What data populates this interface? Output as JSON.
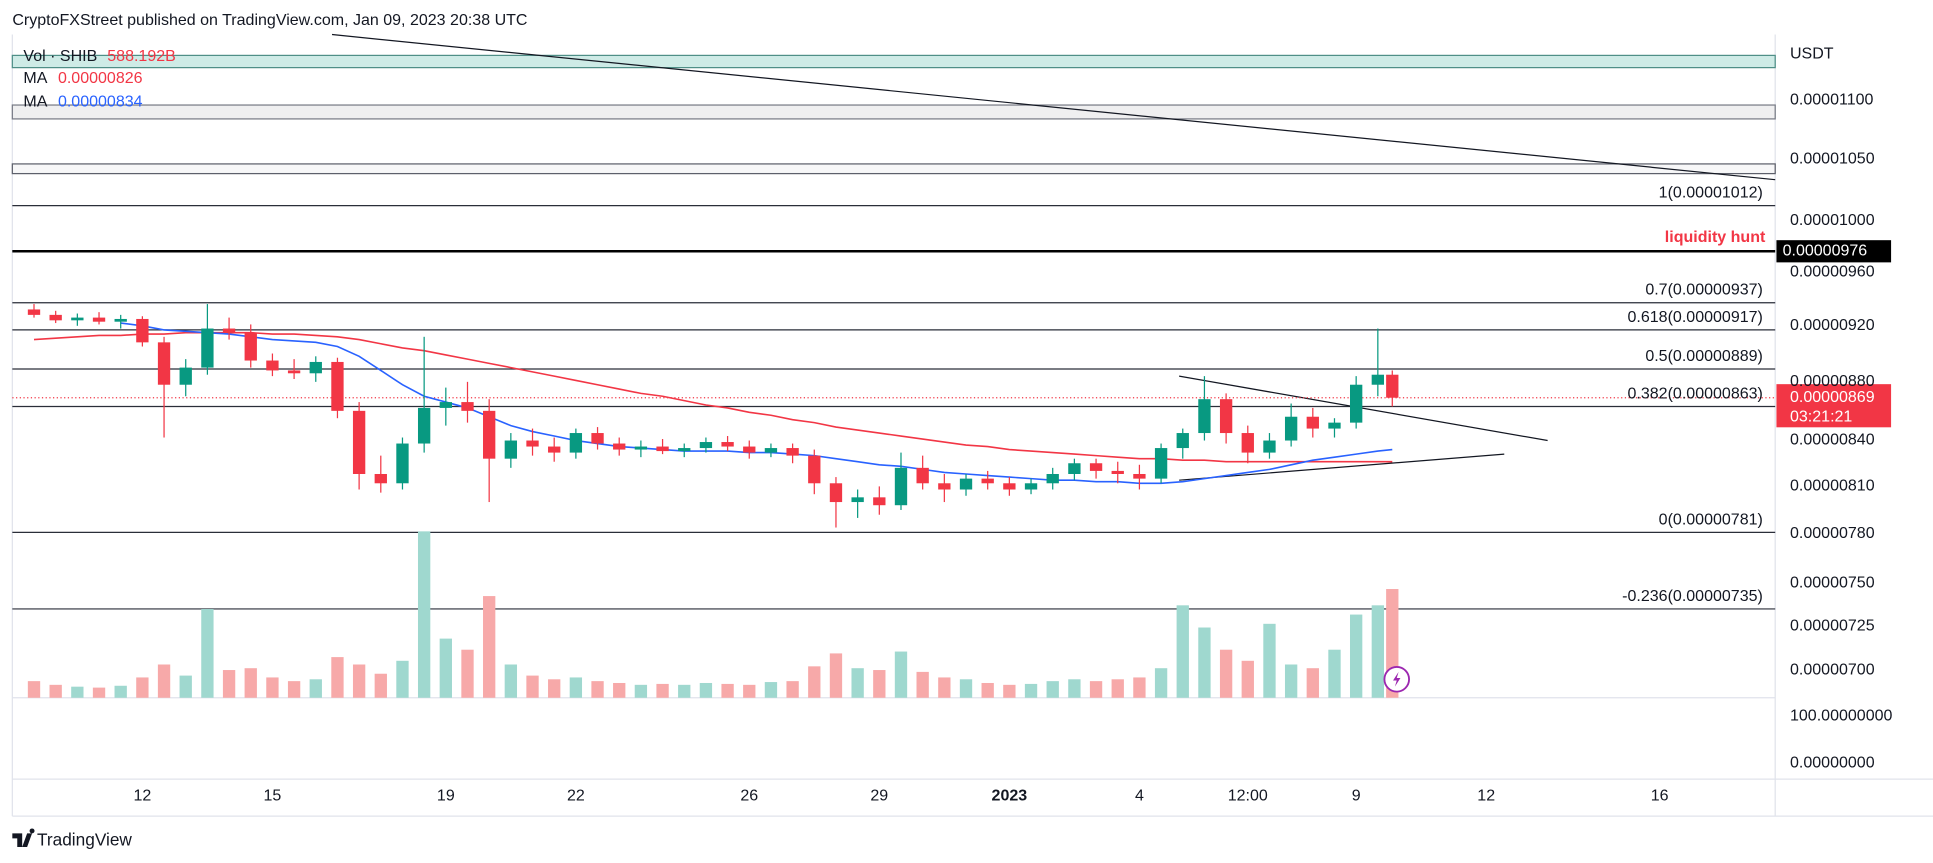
{
  "header": {
    "published": "CryptoFXStreet published on TradingView.com, Jan 09, 2023 20:38 UTC"
  },
  "footer": {
    "brand": "TradingView"
  },
  "chart_data": {
    "type": "candlestick",
    "log_scale": true,
    "unit": "USDT",
    "xlim": [
      "2022-12-09T00:00",
      "2023-01-18T16:00"
    ],
    "xticks": [
      {
        "value": "2022-12-12T00:00",
        "label": "12"
      },
      {
        "value": "2022-12-15T00:00",
        "label": "15"
      },
      {
        "value": "2022-12-19T00:00",
        "label": "19"
      },
      {
        "value": "2022-12-22T00:00",
        "label": "22"
      },
      {
        "value": "2022-12-26T00:00",
        "label": "26"
      },
      {
        "value": "2022-12-29T00:00",
        "label": "29"
      },
      {
        "value": "2023-01-01T00:00",
        "label": "2023",
        "bold": true
      },
      {
        "value": "2023-01-04T00:00",
        "label": "4"
      },
      {
        "value": "2023-01-06T12:00",
        "label": "12:00"
      },
      {
        "value": "2023-01-09T00:00",
        "label": "9"
      },
      {
        "value": "2023-01-12T00:00",
        "label": "12"
      },
      {
        "value": "2023-01-16T00:00",
        "label": "16"
      }
    ],
    "ylim": [
      6.85e-06,
      1.159e-05
    ],
    "yticks": [
      {
        "value": 1.1e-05,
        "label": "0.00001100"
      },
      {
        "value": 1.05e-05,
        "label": "0.00001050"
      },
      {
        "value": 1e-05,
        "label": "0.00001000"
      },
      {
        "value": 9.6e-06,
        "label": "0.00000960"
      },
      {
        "value": 9.2e-06,
        "label": "0.00000920"
      },
      {
        "value": 8.8e-06,
        "label": "0.00000880"
      },
      {
        "value": 8.4e-06,
        "label": "0.00000840"
      },
      {
        "value": 8.1e-06,
        "label": "0.00000810"
      },
      {
        "value": 7.8e-06,
        "label": "0.00000780"
      },
      {
        "value": 7.5e-06,
        "label": "0.00000750"
      },
      7.25e-06,
      {
        "value": 7e-06,
        "label": "0.00000700"
      }
    ],
    "up_color": "#089981",
    "down_color": "#f23645",
    "x": [
      "2022-12-09T12:00",
      "2022-12-10T00:00",
      "2022-12-10T12:00",
      "2022-12-11T00:00",
      "2022-12-11T12:00",
      "2022-12-12T00:00",
      "2022-12-12T12:00",
      "2022-12-13T00:00",
      "2022-12-13T12:00",
      "2022-12-14T00:00",
      "2022-12-14T12:00",
      "2022-12-15T00:00",
      "2022-12-15T12:00",
      "2022-12-16T00:00",
      "2022-12-16T12:00",
      "2022-12-17T00:00",
      "2022-12-17T12:00",
      "2022-12-18T00:00",
      "2022-12-18T12:00",
      "2022-12-19T00:00",
      "2022-12-19T12:00",
      "2022-12-20T00:00",
      "2022-12-20T12:00",
      "2022-12-21T00:00",
      "2022-12-21T12:00",
      "2022-12-22T00:00",
      "2022-12-22T12:00",
      "2022-12-23T00:00",
      "2022-12-23T12:00",
      "2022-12-24T00:00",
      "2022-12-24T12:00",
      "2022-12-25T00:00",
      "2022-12-25T12:00",
      "2022-12-26T00:00",
      "2022-12-26T12:00",
      "2022-12-27T00:00",
      "2022-12-27T12:00",
      "2022-12-28T00:00",
      "2022-12-28T12:00",
      "2022-12-29T00:00",
      "2022-12-29T12:00",
      "2022-12-30T00:00",
      "2022-12-30T12:00",
      "2022-12-31T00:00",
      "2022-12-31T12:00",
      "2023-01-01T00:00",
      "2023-01-01T12:00",
      "2023-01-02T00:00",
      "2023-01-02T12:00",
      "2023-01-03T00:00",
      "2023-01-03T12:00",
      "2023-01-04T00:00",
      "2023-01-04T12:00",
      "2023-01-05T00:00",
      "2023-01-05T12:00",
      "2023-01-06T00:00",
      "2023-01-06T12:00",
      "2023-01-07T00:00",
      "2023-01-07T12:00",
      "2023-01-08T00:00",
      "2023-01-08T12:00",
      "2023-01-09T00:00",
      "2023-01-09T12:00",
      "2023-01-09T20:00"
    ],
    "open": [
      9.32e-06,
      9.28e-06,
      9.24e-06,
      9.26e-06,
      9.23e-06,
      9.25e-06,
      9.08e-06,
      8.78e-06,
      8.9e-06,
      9.18e-06,
      9.15e-06,
      8.95e-06,
      8.88e-06,
      8.86e-06,
      8.94e-06,
      8.6e-06,
      8.18e-06,
      8.12e-06,
      8.38e-06,
      8.62e-06,
      8.66e-06,
      8.6e-06,
      8.28e-06,
      8.4e-06,
      8.36e-06,
      8.32e-06,
      8.45e-06,
      8.38e-06,
      8.34e-06,
      8.36e-06,
      8.33e-06,
      8.35e-06,
      8.39e-06,
      8.36e-06,
      8.32e-06,
      8.35e-06,
      8.3e-06,
      8.12e-06,
      8e-06,
      8.03e-06,
      7.98e-06,
      8.22e-06,
      8.12e-06,
      8.08e-06,
      8.15e-06,
      8.12e-06,
      8.08e-06,
      8.12e-06,
      8.18e-06,
      8.25e-06,
      8.2e-06,
      8.18e-06,
      8.15e-06,
      8.35e-06,
      8.45e-06,
      8.68e-06,
      8.45e-06,
      8.32e-06,
      8.4e-06,
      8.56e-06,
      8.48e-06,
      8.52e-06,
      8.78e-06,
      8.85e-06
    ],
    "high": [
      9.36e-06,
      9.31e-06,
      9.29e-06,
      9.3e-06,
      9.28e-06,
      9.27e-06,
      9.12e-06,
      8.96e-06,
      9.36e-06,
      9.26e-06,
      9.21e-06,
      9e-06,
      8.96e-06,
      8.98e-06,
      8.97e-06,
      8.66e-06,
      8.3e-06,
      8.42e-06,
      9.12e-06,
      8.76e-06,
      8.8e-06,
      8.68e-06,
      8.45e-06,
      8.48e-06,
      8.42e-06,
      8.48e-06,
      8.49e-06,
      8.42e-06,
      8.4e-06,
      8.41e-06,
      8.38e-06,
      8.42e-06,
      8.43e-06,
      8.4e-06,
      8.38e-06,
      8.38e-06,
      8.34e-06,
      8.16e-06,
      8.08e-06,
      8.1e-06,
      8.32e-06,
      8.3e-06,
      8.18e-06,
      8.18e-06,
      8.2e-06,
      8.16e-06,
      8.15e-06,
      8.22e-06,
      8.28e-06,
      8.28e-06,
      8.26e-06,
      8.24e-06,
      8.38e-06,
      8.48e-06,
      8.84e-06,
      8.72e-06,
      8.5e-06,
      8.45e-06,
      8.65e-06,
      8.62e-06,
      8.55e-06,
      8.84e-06,
      9.18e-06,
      8.88e-06
    ],
    "low": [
      9.26e-06,
      9.22e-06,
      9.2e-06,
      9.21e-06,
      9.18e-06,
      9.05e-06,
      8.42e-06,
      8.7e-06,
      8.85e-06,
      9.1e-06,
      8.9e-06,
      8.84e-06,
      8.82e-06,
      8.8e-06,
      8.55e-06,
      8.08e-06,
      8.06e-06,
      8.08e-06,
      8.32e-06,
      8.5e-06,
      8.52e-06,
      8e-06,
      8.22e-06,
      8.3e-06,
      8.26e-06,
      8.28e-06,
      8.34e-06,
      8.3e-06,
      8.29e-06,
      8.31e-06,
      8.29e-06,
      8.32e-06,
      8.33e-06,
      8.28e-06,
      8.29e-06,
      8.25e-06,
      8.05e-06,
      7.84e-06,
      7.9e-06,
      7.92e-06,
      7.95e-06,
      8.08e-06,
      8e-06,
      8.04e-06,
      8.08e-06,
      8.04e-06,
      8.05e-06,
      8.08e-06,
      8.14e-06,
      8.15e-06,
      8.12e-06,
      8.08e-06,
      8.12e-06,
      8.28e-06,
      8.4e-06,
      8.38e-06,
      8.25e-06,
      8.28e-06,
      8.36e-06,
      8.42e-06,
      8.42e-06,
      8.48e-06,
      8.7e-06,
      8.63e-06
    ],
    "close": [
      9.28e-06,
      9.24e-06,
      9.26e-06,
      9.23e-06,
      9.25e-06,
      9.08e-06,
      8.78e-06,
      8.9e-06,
      9.18e-06,
      9.15e-06,
      8.95e-06,
      8.88e-06,
      8.86e-06,
      8.94e-06,
      8.6e-06,
      8.18e-06,
      8.12e-06,
      8.38e-06,
      8.62e-06,
      8.66e-06,
      8.6e-06,
      8.28e-06,
      8.4e-06,
      8.36e-06,
      8.32e-06,
      8.45e-06,
      8.38e-06,
      8.34e-06,
      8.36e-06,
      8.33e-06,
      8.35e-06,
      8.39e-06,
      8.36e-06,
      8.32e-06,
      8.35e-06,
      8.3e-06,
      8.12e-06,
      8e-06,
      8.03e-06,
      7.98e-06,
      8.22e-06,
      8.12e-06,
      8.08e-06,
      8.15e-06,
      8.12e-06,
      8.08e-06,
      8.12e-06,
      8.18e-06,
      8.25e-06,
      8.2e-06,
      8.18e-06,
      8.15e-06,
      8.35e-06,
      8.45e-06,
      8.68e-06,
      8.45e-06,
      8.32e-06,
      8.4e-06,
      8.56e-06,
      8.48e-06,
      8.52e-06,
      8.78e-06,
      8.85e-06,
      8.69e-06
    ],
    "volume": {
      "name": "Vol · SHIB",
      "values": [
        90,
        70,
        60,
        55,
        65,
        110,
        180,
        120,
        480,
        150,
        160,
        110,
        90,
        100,
        220,
        180,
        130,
        200,
        900,
        320,
        260,
        550,
        180,
        120,
        100,
        110,
        90,
        80,
        70,
        75,
        70,
        80,
        75,
        70,
        85,
        90,
        170,
        240,
        160,
        150,
        250,
        140,
        110,
        100,
        80,
        70,
        75,
        90,
        100,
        90,
        100,
        110,
        160,
        500,
        380,
        260,
        200,
        400,
        180,
        160,
        260,
        450,
        500,
        588.192
      ],
      "last_value_label": "588.192B",
      "ylim": [
        0,
        900
      ],
      "up_color": "#9fd8cf",
      "down_color": "#f7a9a9"
    },
    "series": [
      {
        "name": "MA",
        "color": "#f23645",
        "values": [
          9.1e-06,
          9.11e-06,
          9.12e-06,
          9.13e-06,
          9.13e-06,
          9.14e-06,
          9.14e-06,
          9.15e-06,
          9.15e-06,
          9.15e-06,
          9.15e-06,
          9.14e-06,
          9.14e-06,
          9.13e-06,
          9.12e-06,
          9.1e-06,
          9.07e-06,
          9.04e-06,
          9.02e-06,
          8.99e-06,
          8.96e-06,
          8.93e-06,
          8.9e-06,
          8.87e-06,
          8.84e-06,
          8.81e-06,
          8.78e-06,
          8.75e-06,
          8.72e-06,
          8.7e-06,
          8.67e-06,
          8.64e-06,
          8.62e-06,
          8.59e-06,
          8.57e-06,
          8.54e-06,
          8.52e-06,
          8.49e-06,
          8.47e-06,
          8.45e-06,
          8.43e-06,
          8.41e-06,
          8.39e-06,
          8.37e-06,
          8.36e-06,
          8.34e-06,
          8.33e-06,
          8.32e-06,
          8.31e-06,
          8.3e-06,
          8.29e-06,
          8.28e-06,
          8.28e-06,
          8.27e-06,
          8.27e-06,
          8.26e-06,
          8.26e-06,
          8.26e-06,
          8.26e-06,
          8.26e-06,
          8.26e-06,
          8.26e-06,
          8.26e-06,
          8.26e-06
        ]
      },
      {
        "name": "MA",
        "color": "#2962ff",
        "values": [
          null,
          null,
          null,
          null,
          9.22e-06,
          9.2e-06,
          9.17e-06,
          9.16e-06,
          9.15e-06,
          9.14e-06,
          9.12e-06,
          9.1e-06,
          9.09e-06,
          9.08e-06,
          9.05e-06,
          8.98e-06,
          8.88e-06,
          8.78e-06,
          8.7e-06,
          8.66e-06,
          8.62e-06,
          8.56e-06,
          8.5e-06,
          8.46e-06,
          8.43e-06,
          8.4e-06,
          8.38e-06,
          8.36e-06,
          8.35e-06,
          8.34e-06,
          8.33e-06,
          8.33e-06,
          8.33e-06,
          8.32e-06,
          8.32e-06,
          8.31e-06,
          8.3e-06,
          8.28e-06,
          8.26e-06,
          8.24e-06,
          8.23e-06,
          8.21e-06,
          8.19e-06,
          8.18e-06,
          8.17e-06,
          8.16e-06,
          8.15e-06,
          8.14e-06,
          8.14e-06,
          8.13e-06,
          8.13e-06,
          8.12e-06,
          8.12e-06,
          8.13e-06,
          8.15e-06,
          8.17e-06,
          8.19e-06,
          8.21e-06,
          8.24e-06,
          8.27e-06,
          8.29e-06,
          8.31e-06,
          8.33e-06,
          8.34e-06
        ]
      }
    ],
    "zones": [
      {
        "from": 1.129e-05,
        "to": 1.14e-05,
        "fill": "rgba(8,153,129,0.2)",
        "stroke": "#4f8f87"
      },
      {
        "from": 1.084e-05,
        "to": 1.096e-05,
        "fill": "rgba(120,123,134,0.12)",
        "stroke": "#787b86"
      },
      {
        "from": 1.038e-05,
        "to": 1.046e-05,
        "fill": "rgba(120,123,134,0.06)",
        "stroke": "#5d606b"
      }
    ],
    "fib_levels": [
      {
        "label": "1(0.00001012)",
        "value": 1.012e-05
      },
      {
        "label": "0.7(0.00000937)",
        "value": 9.37e-06
      },
      {
        "label": "0.618(0.00000917)",
        "value": 9.17e-06
      },
      {
        "label": "0.5(0.00000889)",
        "value": 8.89e-06
      },
      {
        "label": "0.382(0.00000863)",
        "value": 8.63e-06
      },
      {
        "label": "0(0.00000781)",
        "value": 7.81e-06
      },
      {
        "label": "-0.236(0.00000735)",
        "value": 7.35e-06
      }
    ],
    "liquidity": {
      "label": "liquidity hunt",
      "value": 9.76e-06,
      "color": "#f23645"
    },
    "trendlines": [
      {
        "x": [
          "2022-12-16T09:00",
          "2023-01-18T16:00"
        ],
        "y": [
          1.159e-05,
          1.033e-05
        ]
      },
      {
        "x": [
          "2023-01-04T22:00",
          "2023-01-13T10:00"
        ],
        "y": [
          8.84e-06,
          8.4e-06
        ]
      },
      {
        "x": [
          "2023-01-04T22:00",
          "2023-01-12T10:00"
        ],
        "y": [
          8.14e-06,
          8.31e-06
        ]
      }
    ],
    "last_price": {
      "value": 8.69e-06,
      "countdown": "03:21:21",
      "color": "#f23645"
    },
    "lower_pane": {
      "ylim": [
        -34,
        139
      ],
      "yticks": [
        {
          "value": 100,
          "label": "100.00000000"
        },
        {
          "value": 0,
          "label": "0.00000000"
        }
      ]
    }
  }
}
